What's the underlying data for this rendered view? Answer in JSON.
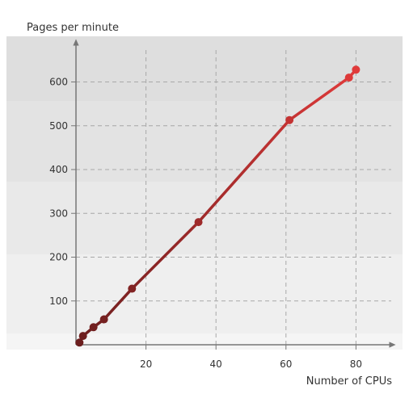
{
  "chart_data": {
    "type": "line",
    "ylabel": "Pages per minute",
    "xlabel": "Number of CPUs",
    "xlim": [
      0,
      90
    ],
    "ylim": [
      0,
      690
    ],
    "x_ticks": [
      20,
      40,
      60,
      80
    ],
    "y_ticks": [
      100,
      200,
      300,
      400,
      500,
      600
    ],
    "grid": true,
    "series": [
      {
        "color_start": "#6b1e1e",
        "color_end": "#e03a3a",
        "points": [
          {
            "x": 1,
            "y": 5
          },
          {
            "x": 2,
            "y": 20
          },
          {
            "x": 5,
            "y": 40
          },
          {
            "x": 8,
            "y": 58
          },
          {
            "x": 16,
            "y": 128
          },
          {
            "x": 35,
            "y": 280
          },
          {
            "x": 61,
            "y": 513
          },
          {
            "x": 78,
            "y": 610
          },
          {
            "x": 80,
            "y": 628
          }
        ]
      }
    ]
  }
}
